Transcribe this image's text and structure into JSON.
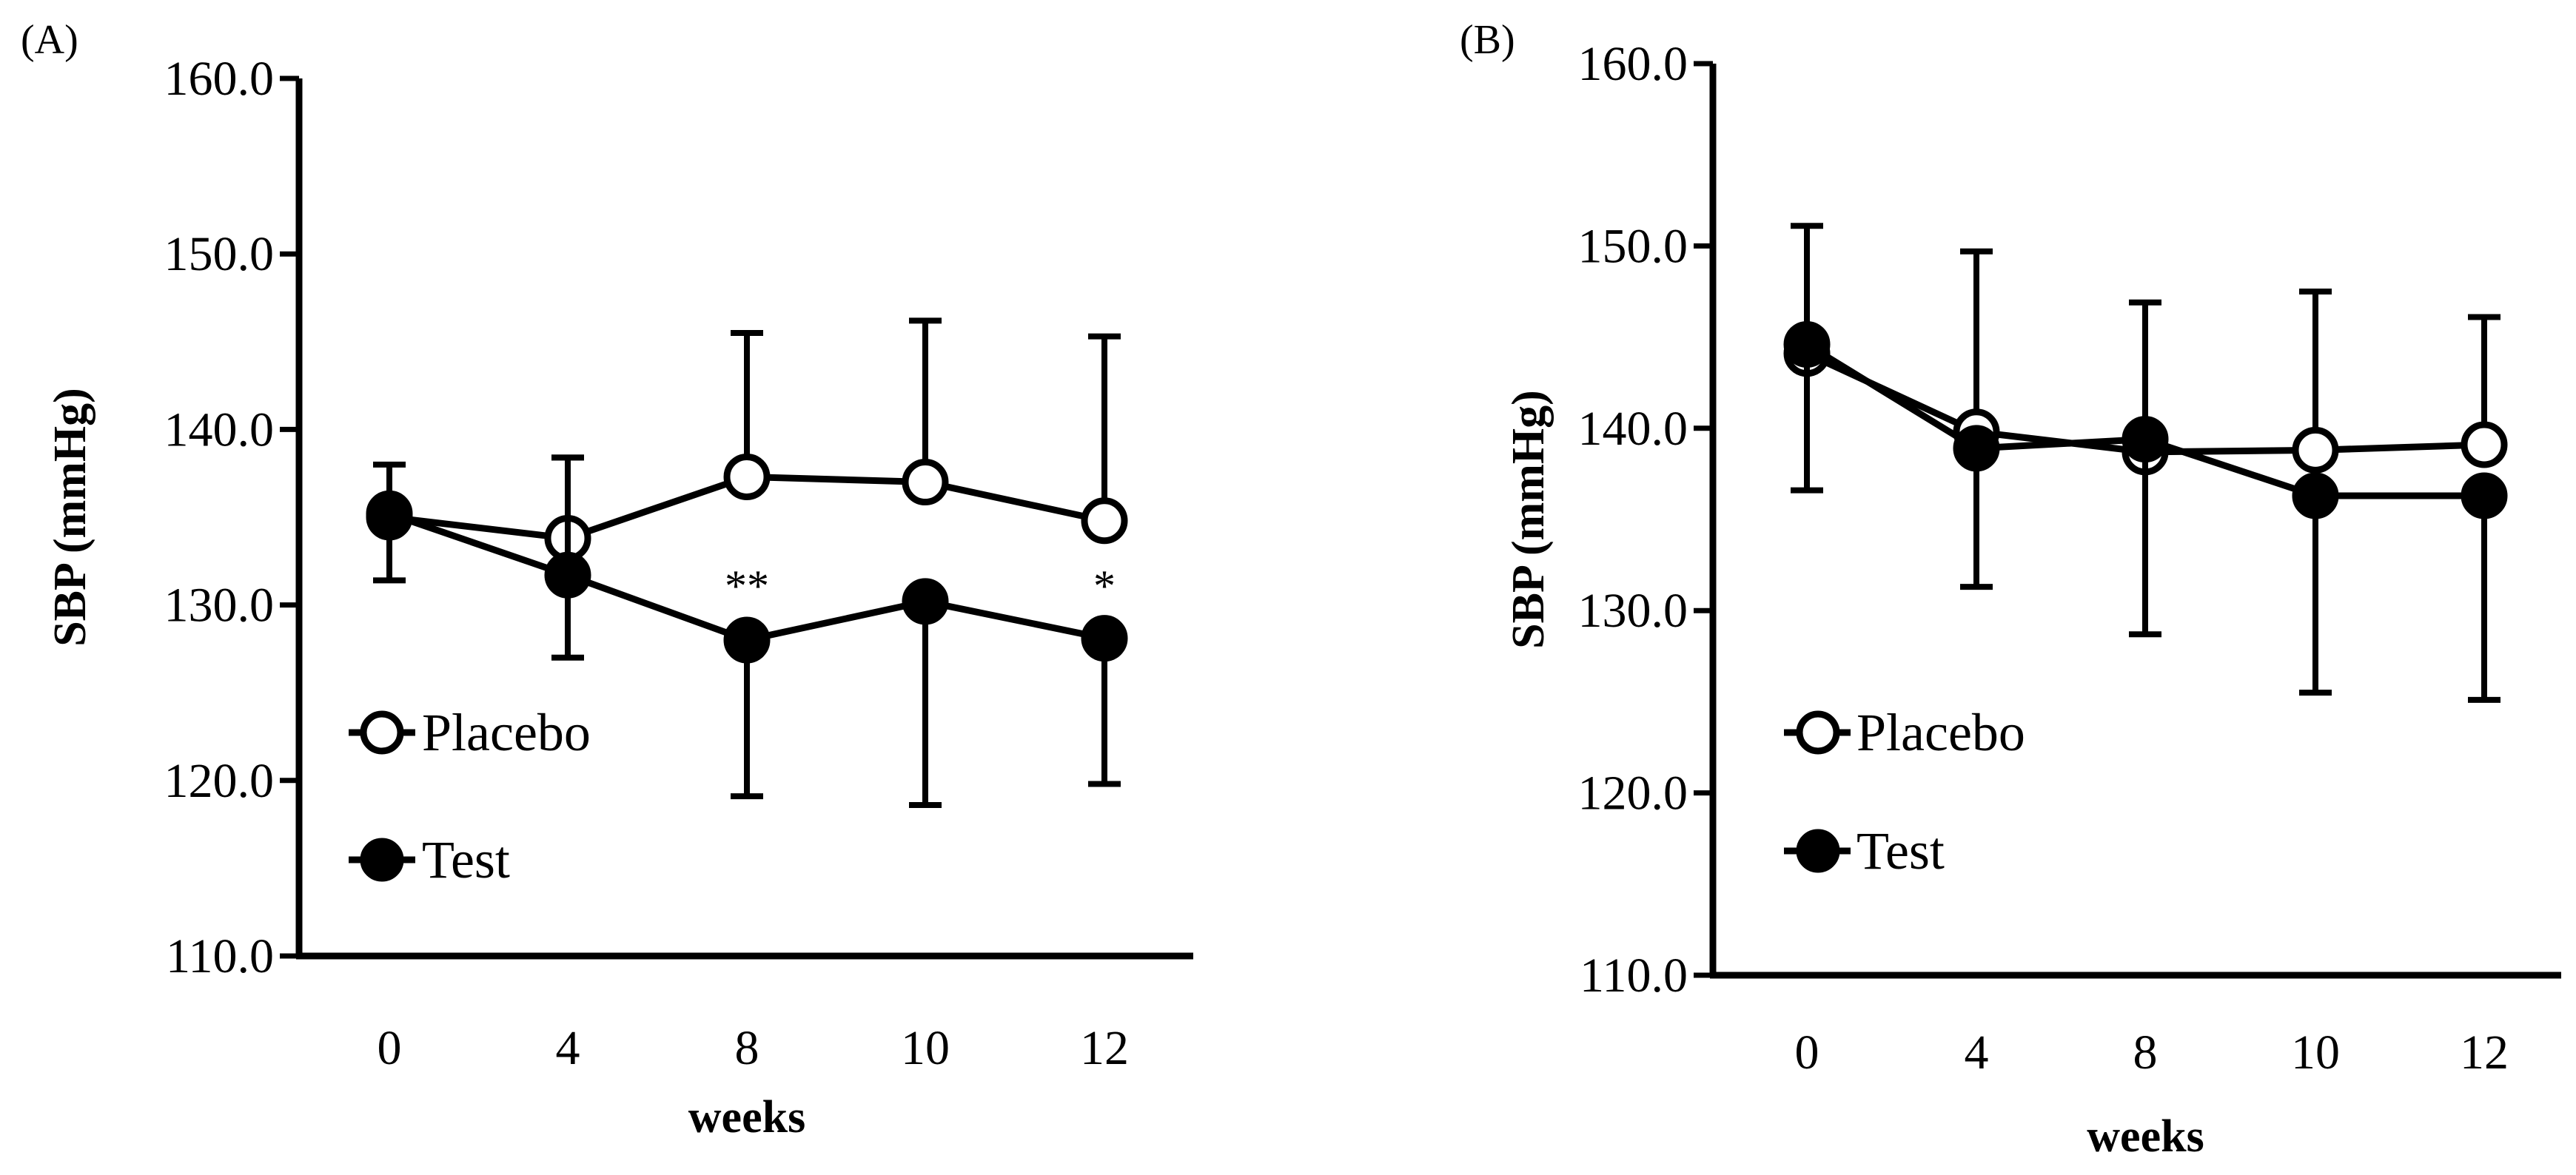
{
  "figure": {
    "colors": {
      "ink": "#000000",
      "background": "#ffffff",
      "open_marker_fill": "#ffffff"
    }
  },
  "chart_data": [
    {
      "type": "line",
      "panel_label": "(A)",
      "title": "",
      "xlabel": "weeks",
      "ylabel": "SBP (mmHg)",
      "categories": [
        "0",
        "4",
        "8",
        "10",
        "12"
      ],
      "ylim": [
        110,
        160
      ],
      "yticks": [
        110,
        120,
        130,
        140,
        150,
        160
      ],
      "ytick_labels": [
        "110.0",
        "120.0",
        "130.0",
        "140.0",
        "150.0",
        "160.0"
      ],
      "grid": false,
      "legend_position": "lower-left",
      "series": [
        {
          "name": "Placebo",
          "marker": "open-circle",
          "values": [
            135.0,
            133.8,
            137.3,
            137.0,
            134.8
          ],
          "error_upper": [
            3.0,
            4.6,
            8.2,
            9.2,
            10.5
          ],
          "error_lower": [
            3.6,
            0,
            0,
            0,
            0
          ]
        },
        {
          "name": "Test",
          "marker": "filled-circle",
          "values": [
            135.2,
            131.7,
            128.0,
            130.2,
            128.1
          ],
          "error_upper": [
            0,
            6.7,
            0,
            0,
            0
          ],
          "error_lower": [
            0,
            4.7,
            8.9,
            11.6,
            8.3
          ]
        }
      ],
      "annotations": [
        {
          "text": "**",
          "category": "8",
          "y": 131.5
        },
        {
          "text": "*",
          "category": "12",
          "y": 131.5
        }
      ]
    },
    {
      "type": "line",
      "panel_label": "(B)",
      "title": "",
      "xlabel": "weeks",
      "ylabel": "SBP (mmHg)",
      "categories": [
        "0",
        "4",
        "8",
        "10",
        "12"
      ],
      "ylim": [
        110,
        160
      ],
      "yticks": [
        110,
        120,
        130,
        140,
        150,
        160
      ],
      "ytick_labels": [
        "110.0",
        "120.0",
        "130.0",
        "140.0",
        "150.0",
        "160.0"
      ],
      "grid": false,
      "legend_position": "lower-left",
      "series": [
        {
          "name": "Placebo",
          "marker": "open-circle",
          "values": [
            144.1,
            139.8,
            138.7,
            138.8,
            139.1
          ],
          "error_upper": [
            7.0,
            9.9,
            8.2,
            8.7,
            7.0
          ],
          "error_lower": [
            0,
            0,
            0,
            0,
            0
          ]
        },
        {
          "name": "Test",
          "marker": "filled-circle",
          "values": [
            144.6,
            138.9,
            139.4,
            136.3,
            136.3
          ],
          "error_upper": [
            0,
            0,
            0,
            0,
            0
          ],
          "error_lower": [
            8.0,
            7.6,
            10.7,
            10.8,
            11.2
          ]
        }
      ],
      "annotations": []
    }
  ]
}
